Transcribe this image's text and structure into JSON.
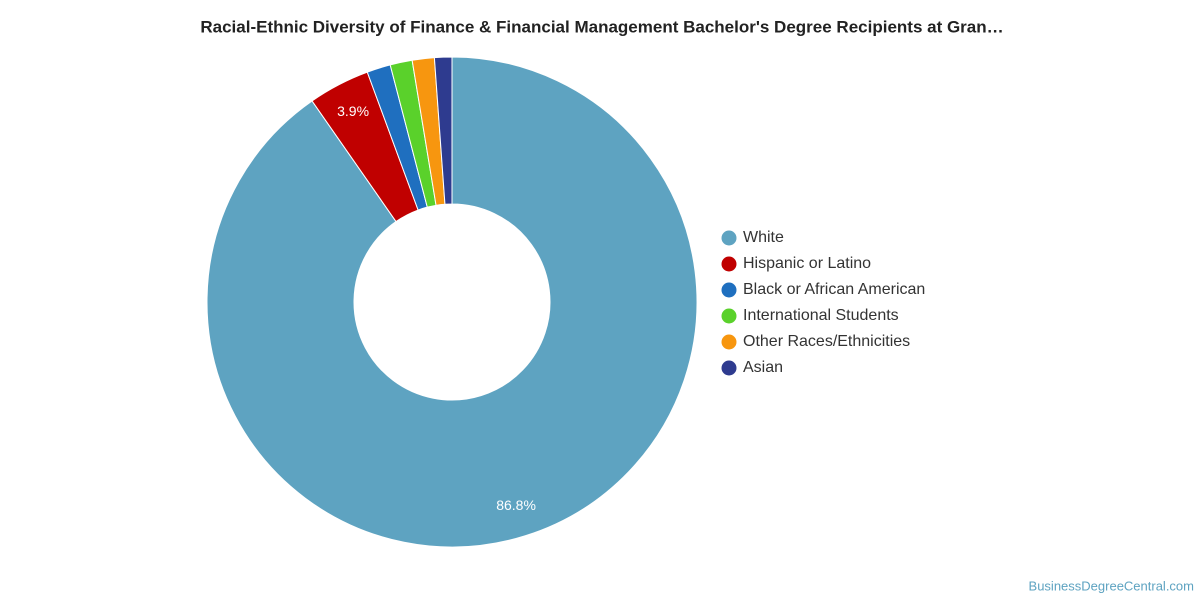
{
  "chart_data": {
    "type": "donut",
    "title": "Racial-Ethnic Diversity of Finance & Financial Management Bachelor's Degree Recipients at Gran…",
    "categories": [
      "White",
      "Hispanic or Latino",
      "Black or African American",
      "International Students",
      "Other Races/Ethnicities",
      "Asian"
    ],
    "values": [
      86.8,
      3.9,
      1.5,
      1.4,
      1.4,
      1.1
    ],
    "value_labels": [
      "86.8%",
      "3.9%",
      null,
      null,
      null,
      null
    ],
    "colors": [
      "#5ea3c1",
      "#c00000",
      "#1f6fbf",
      "#5ad12b",
      "#f7960f",
      "#2e3b8f"
    ],
    "legend": "right",
    "watermark": "BusinessDegreeCentral.com"
  }
}
